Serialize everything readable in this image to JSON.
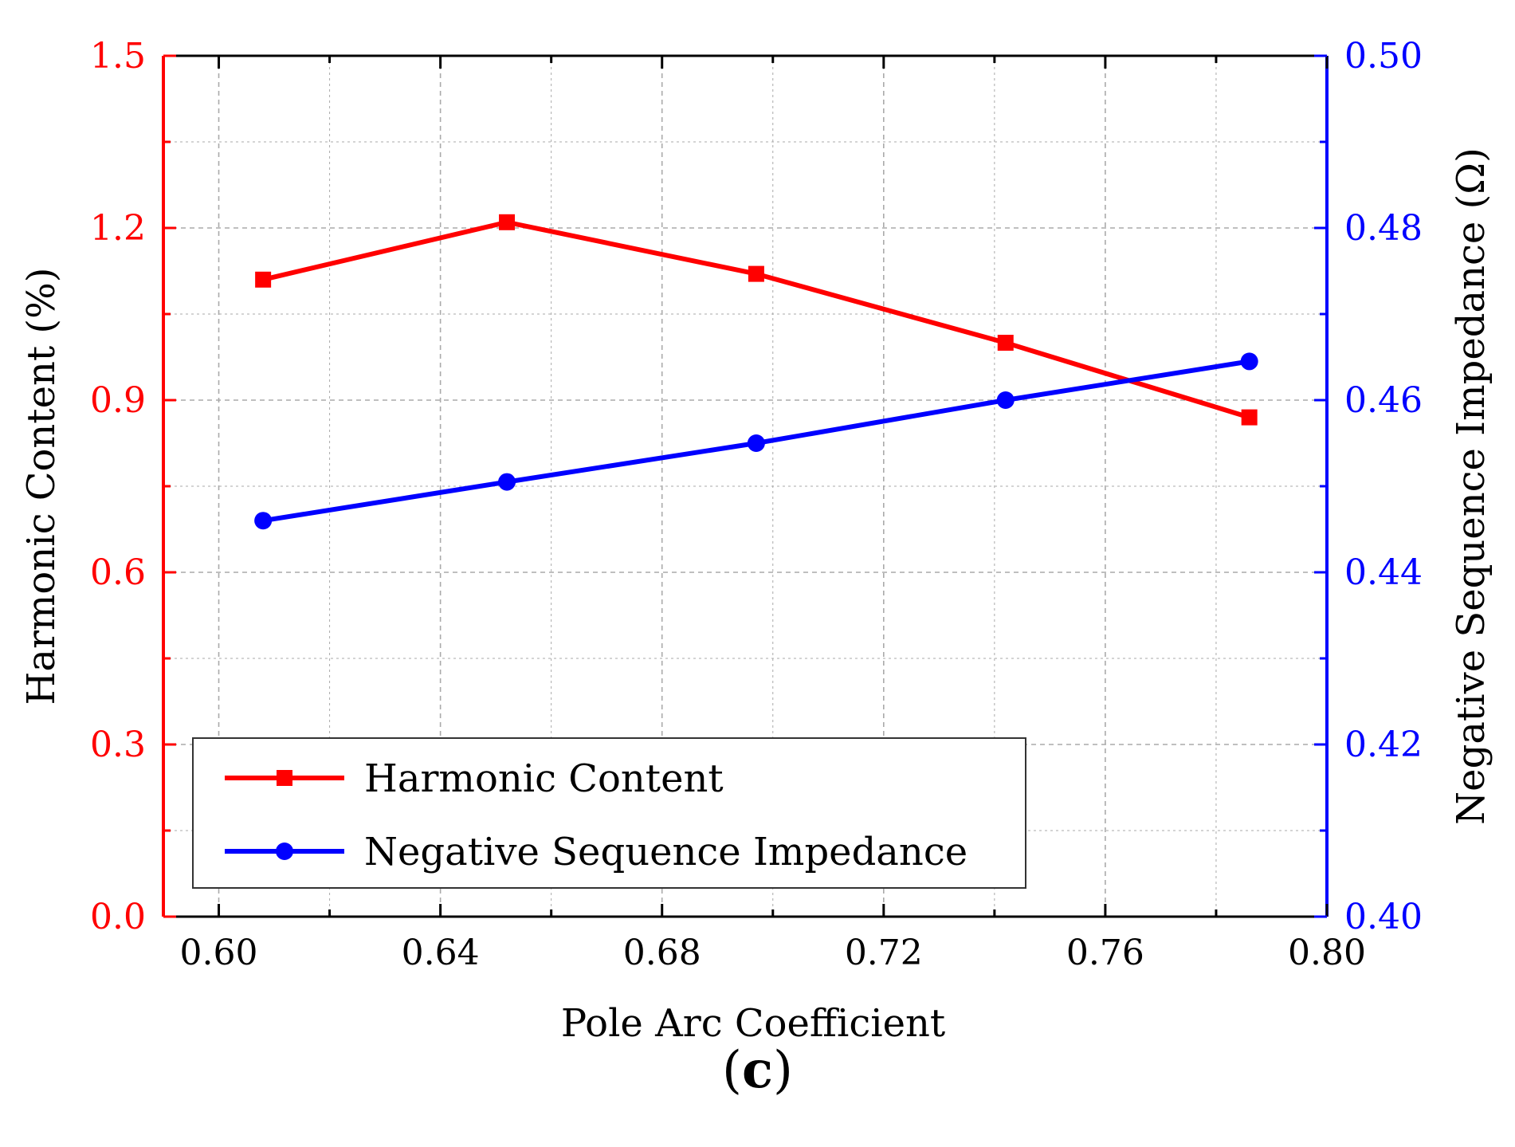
{
  "chart_data": {
    "type": "line",
    "title": "",
    "xlabel": "Pole Arc Coefficient",
    "ylabel_left": "Harmonic Content (%)",
    "ylabel_right": "Negative Sequence Impedance (Ω)",
    "xlim": [
      0.59,
      0.8
    ],
    "x_ticks": [
      "0.60",
      "0.64",
      "0.68",
      "0.72",
      "0.76",
      "0.80"
    ],
    "x_tick_values": [
      0.6,
      0.64,
      0.68,
      0.72,
      0.76,
      0.8
    ],
    "ylim_left": [
      0.0,
      1.5
    ],
    "y_left_ticks": [
      "0.0",
      "0.3",
      "0.6",
      "0.9",
      "1.2",
      "1.5"
    ],
    "y_left_tick_values": [
      0.0,
      0.3,
      0.6,
      0.9,
      1.2,
      1.5
    ],
    "ylim_right": [
      0.4,
      0.5
    ],
    "y_right_ticks": [
      "0.40",
      "0.42",
      "0.44",
      "0.46",
      "0.48",
      "0.50"
    ],
    "y_right_tick_values": [
      0.4,
      0.42,
      0.44,
      0.46,
      0.48,
      0.5
    ],
    "grid": true,
    "legend_position": "bottom-left",
    "series": [
      {
        "name": "Harmonic Content",
        "axis": "left",
        "color": "#ff0000",
        "marker": "square",
        "x": [
          0.608,
          0.652,
          0.697,
          0.742,
          0.786
        ],
        "values": [
          1.11,
          1.21,
          1.12,
          1.0,
          0.87
        ]
      },
      {
        "name": "Negative Sequence Impedance",
        "axis": "right",
        "color": "#0000ff",
        "marker": "circle",
        "x": [
          0.608,
          0.652,
          0.697,
          0.742,
          0.786
        ],
        "values": [
          0.446,
          0.4505,
          0.455,
          0.46,
          0.4645
        ]
      }
    ]
  },
  "caption": {
    "open": "(",
    "letter": "c",
    "close": ")"
  },
  "colors": {
    "left_axis": "#ff0000",
    "right_axis": "#0000ff",
    "grid": "#aaaaaa"
  }
}
